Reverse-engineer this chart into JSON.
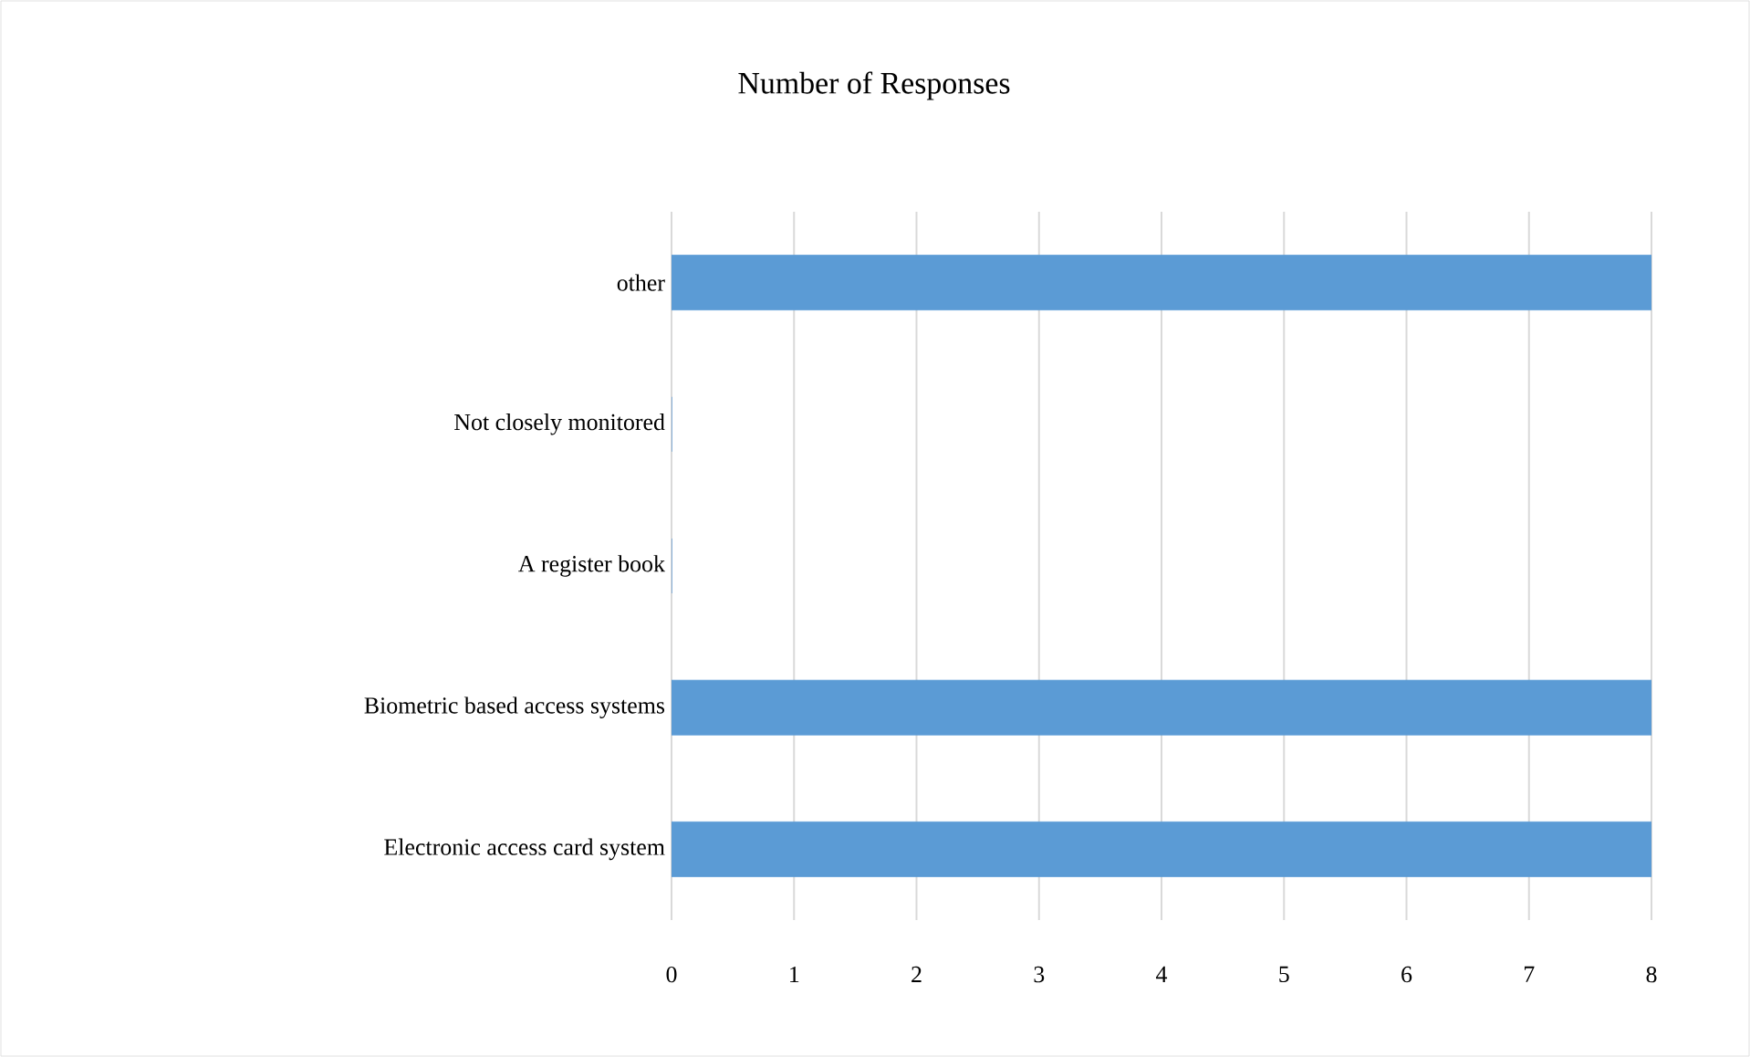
{
  "chart_data": {
    "type": "bar",
    "orientation": "horizontal",
    "title": "Number of Responses",
    "categories": [
      "other",
      "Not closely monitored",
      "A register book",
      "Biometric based access systems",
      "Electronic access card system"
    ],
    "values": [
      8,
      0,
      0,
      8,
      8
    ],
    "color": "#5b9bd5",
    "xlim": [
      0,
      8
    ],
    "xticks": [
      0,
      1,
      2,
      3,
      4,
      5,
      6,
      7,
      8
    ],
    "grid": "x"
  }
}
